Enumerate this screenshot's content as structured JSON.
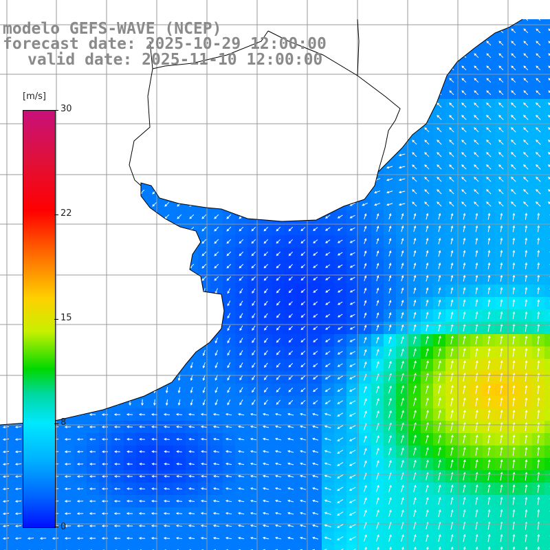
{
  "title": {
    "model": "modelo GEFS-WAVE (NCEP)",
    "forecast": "forecast date: 2025-10-29 12:00:00",
    "valid": "valid date: 2025-11-10 12:00:00"
  },
  "colorbar": {
    "unit": "[m/s]",
    "ticks": [
      "30",
      "22",
      "15",
      "8",
      "0"
    ],
    "colors": [
      "#c8107a",
      "#ff0000",
      "#ff7000",
      "#ffd000",
      "#00d800",
      "#00e8ff",
      "#00b0ff",
      "#0010ff"
    ]
  },
  "map": {
    "land_color": "#ffffff",
    "grid_color": "#999999",
    "coast_color": "#000000",
    "arrow_color": "#ffffff"
  }
}
